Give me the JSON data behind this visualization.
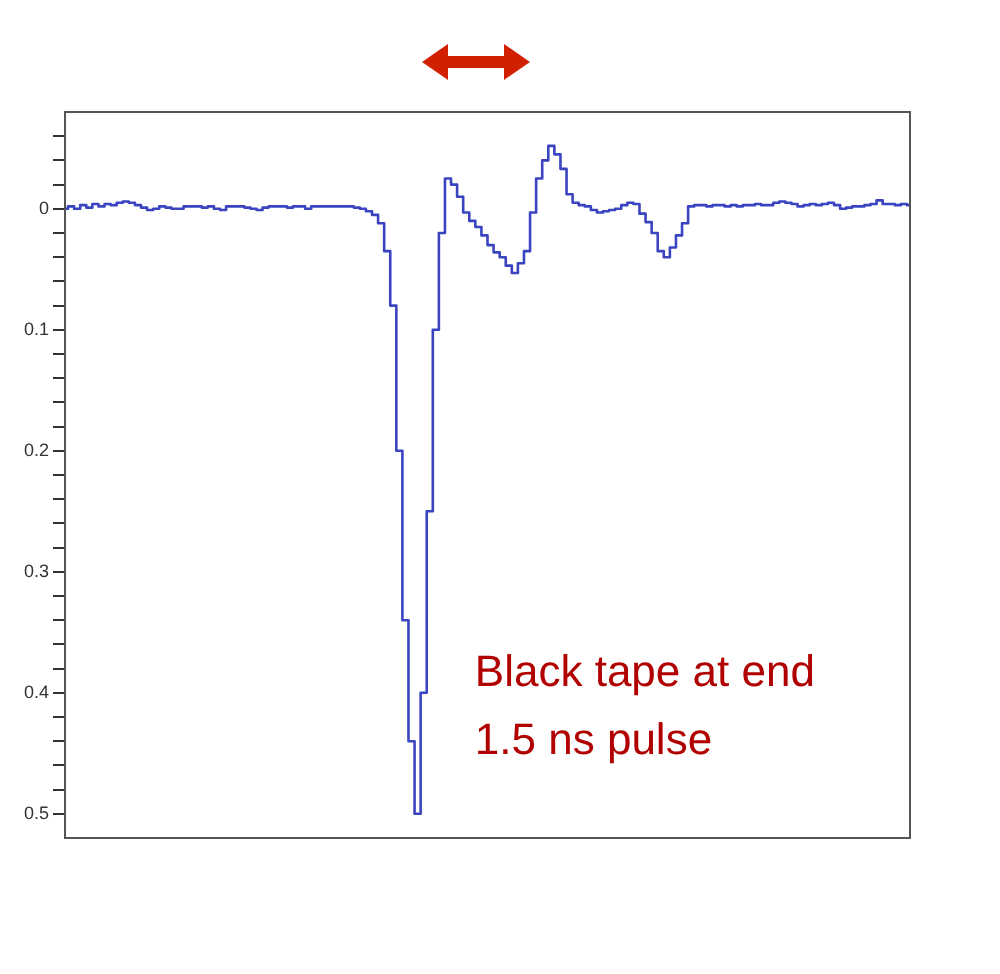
{
  "chart_data": {
    "type": "step",
    "categories": [
      null,
      null,
      null,
      null,
      null,
      null,
      null,
      null,
      null,
      null,
      null,
      null,
      null,
      null,
      null,
      null,
      null,
      null,
      null,
      null,
      null,
      null,
      null,
      null,
      null,
      null,
      null,
      null,
      null,
      null,
      null,
      null,
      null,
      null,
      null,
      null,
      null,
      null,
      null,
      null,
      null,
      null,
      null,
      null,
      null,
      null,
      null,
      null,
      null,
      null,
      null,
      null,
      null,
      null,
      null,
      null,
      null,
      null,
      null,
      null,
      null,
      null,
      null,
      null,
      null,
      null,
      null,
      null,
      null,
      null,
      null,
      null,
      null,
      null,
      null,
      null,
      null,
      null,
      null,
      null,
      null,
      null,
      null,
      null,
      null,
      null,
      null,
      null,
      null,
      null,
      null,
      null,
      null,
      null,
      null,
      null,
      null,
      null,
      null,
      null,
      null,
      null,
      null,
      null,
      null,
      null,
      null,
      null,
      null,
      null,
      null,
      null,
      null,
      null,
      null,
      null,
      null,
      null,
      null,
      null,
      null,
      null,
      null,
      null,
      null,
      null,
      null,
      null,
      null,
      null,
      null,
      null,
      null,
      null,
      null,
      null,
      null,
      null,
      null,
      null
    ],
    "series": [
      {
        "color": "#3a44c0",
        "values": [
          0,
          -0.002,
          0,
          -0.003,
          -0.001,
          -0.004,
          -0.002,
          -0.004,
          -0.003,
          -0.005,
          -0.006,
          -0.005,
          -0.003,
          -0.001,
          0.001,
          0,
          -0.002,
          -0.001,
          0,
          0,
          -0.002,
          -0.002,
          -0.002,
          -0.001,
          -0.002,
          0,
          0.001,
          -0.002,
          -0.002,
          -0.002,
          -0.001,
          0,
          0.001,
          -0.001,
          -0.002,
          -0.002,
          -0.002,
          -0.001,
          -0.002,
          -0.002,
          0,
          -0.002,
          -0.002,
          -0.002,
          -0.002,
          -0.002,
          -0.002,
          -0.002,
          -0.001,
          0,
          0.002,
          0.005,
          0.012,
          0.035,
          0.08,
          0.2,
          0.34,
          0.44,
          0.5,
          0.4,
          0.25,
          0.1,
          0.02,
          -0.025,
          -0.02,
          -0.01,
          0.003,
          0.01,
          0.015,
          0.022,
          0.03,
          0.036,
          0.04,
          0.047,
          0.053,
          0.045,
          0.035,
          0.003,
          -0.025,
          -0.04,
          -0.052,
          -0.045,
          -0.033,
          -0.012,
          -0.005,
          -0.003,
          -0.002,
          0.001,
          0.003,
          0.002,
          0.001,
          0,
          -0.003,
          -0.005,
          -0.004,
          0.004,
          0.011,
          0.02,
          0.035,
          0.04,
          0.032,
          0.022,
          0.012,
          -0.002,
          -0.003,
          -0.003,
          -0.002,
          -0.003,
          -0.003,
          -0.002,
          -0.003,
          -0.002,
          -0.003,
          -0.003,
          -0.004,
          -0.003,
          -0.003,
          -0.005,
          -0.006,
          -0.005,
          -0.004,
          -0.002,
          -0.003,
          -0.004,
          -0.003,
          -0.004,
          -0.005,
          -0.003,
          0,
          -0.001,
          -0.002,
          -0.002,
          -0.003,
          -0.004,
          -0.007,
          -0.004,
          -0.004,
          -0.003,
          -0.004,
          -0.003
        ]
      }
    ],
    "ylim": [
      0.52,
      -0.08
    ],
    "yticks": [
      {
        "value": -0.06,
        "label": null
      },
      {
        "value": -0.04,
        "label": null
      },
      {
        "value": -0.02,
        "label": null
      },
      0,
      {
        "value": 0.02,
        "label": null
      },
      {
        "value": 0.04,
        "label": null
      },
      {
        "value": 0.06,
        "label": null
      },
      {
        "value": 0.08,
        "label": null
      },
      0.1,
      {
        "value": 0.12,
        "label": null
      },
      {
        "value": 0.14,
        "label": null
      },
      {
        "value": 0.16,
        "label": null
      },
      {
        "value": 0.18,
        "label": null
      },
      0.2,
      {
        "value": 0.22,
        "label": null
      },
      {
        "value": 0.24,
        "label": null
      },
      {
        "value": 0.26,
        "label": null
      },
      {
        "value": 0.28,
        "label": null
      },
      0.3,
      {
        "value": 0.32,
        "label": null
      },
      {
        "value": 0.34,
        "label": null
      },
      {
        "value": 0.36,
        "label": null
      },
      {
        "value": 0.38,
        "label": null
      },
      0.4,
      {
        "value": 0.42,
        "label": null
      },
      {
        "value": 0.44,
        "label": null
      },
      {
        "value": 0.46,
        "label": null
      },
      {
        "value": 0.48,
        "label": null
      },
      0.5
    ],
    "tick_labels": "y",
    "grid": false,
    "legend": false,
    "annotations": [
      "Black tape at end",
      "1.5 ns pulse"
    ]
  }
}
